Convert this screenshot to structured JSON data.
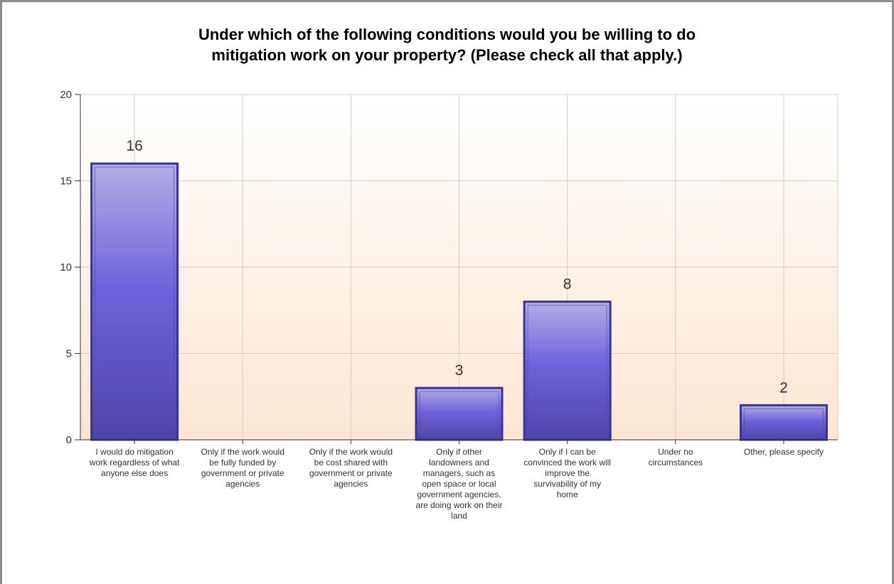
{
  "chart_data": {
    "type": "bar",
    "title": "Under which of the following conditions would you be willing to do\nmitigation work on your property? (Please check all that apply.)",
    "xlabel": "",
    "ylabel": "",
    "ylim": [
      0,
      20
    ],
    "yticks": [
      0,
      5,
      10,
      15,
      20
    ],
    "grid": true,
    "legend": "none",
    "categories": [
      "I would do mitigation work regardless of what anyone else does",
      "Only if the work would be fully funded by government or private agencies",
      "Only if the work would be cost shared with government or private agencies",
      "Only if other landowners and managers, such as open space or local government agencies, are doing work on their land",
      "Only if I can be convinced the work will improve the survivability of my home",
      "Under no circumstances",
      "Other, please specify"
    ],
    "values": [
      16,
      0,
      0,
      3,
      8,
      0,
      2
    ],
    "data_labels": [
      "16",
      "",
      "",
      "3",
      "8",
      "",
      "2"
    ],
    "colors": {
      "bar_light": "#b3aee6",
      "bar_mid": "#6f63dc",
      "bar_dark": "#4f45a8",
      "bar_border": "#3c3399",
      "grid": "#d0d0d0",
      "axis": "#333333",
      "background_top": "#ffffff",
      "background_bottom": "#fbe6d2"
    }
  }
}
